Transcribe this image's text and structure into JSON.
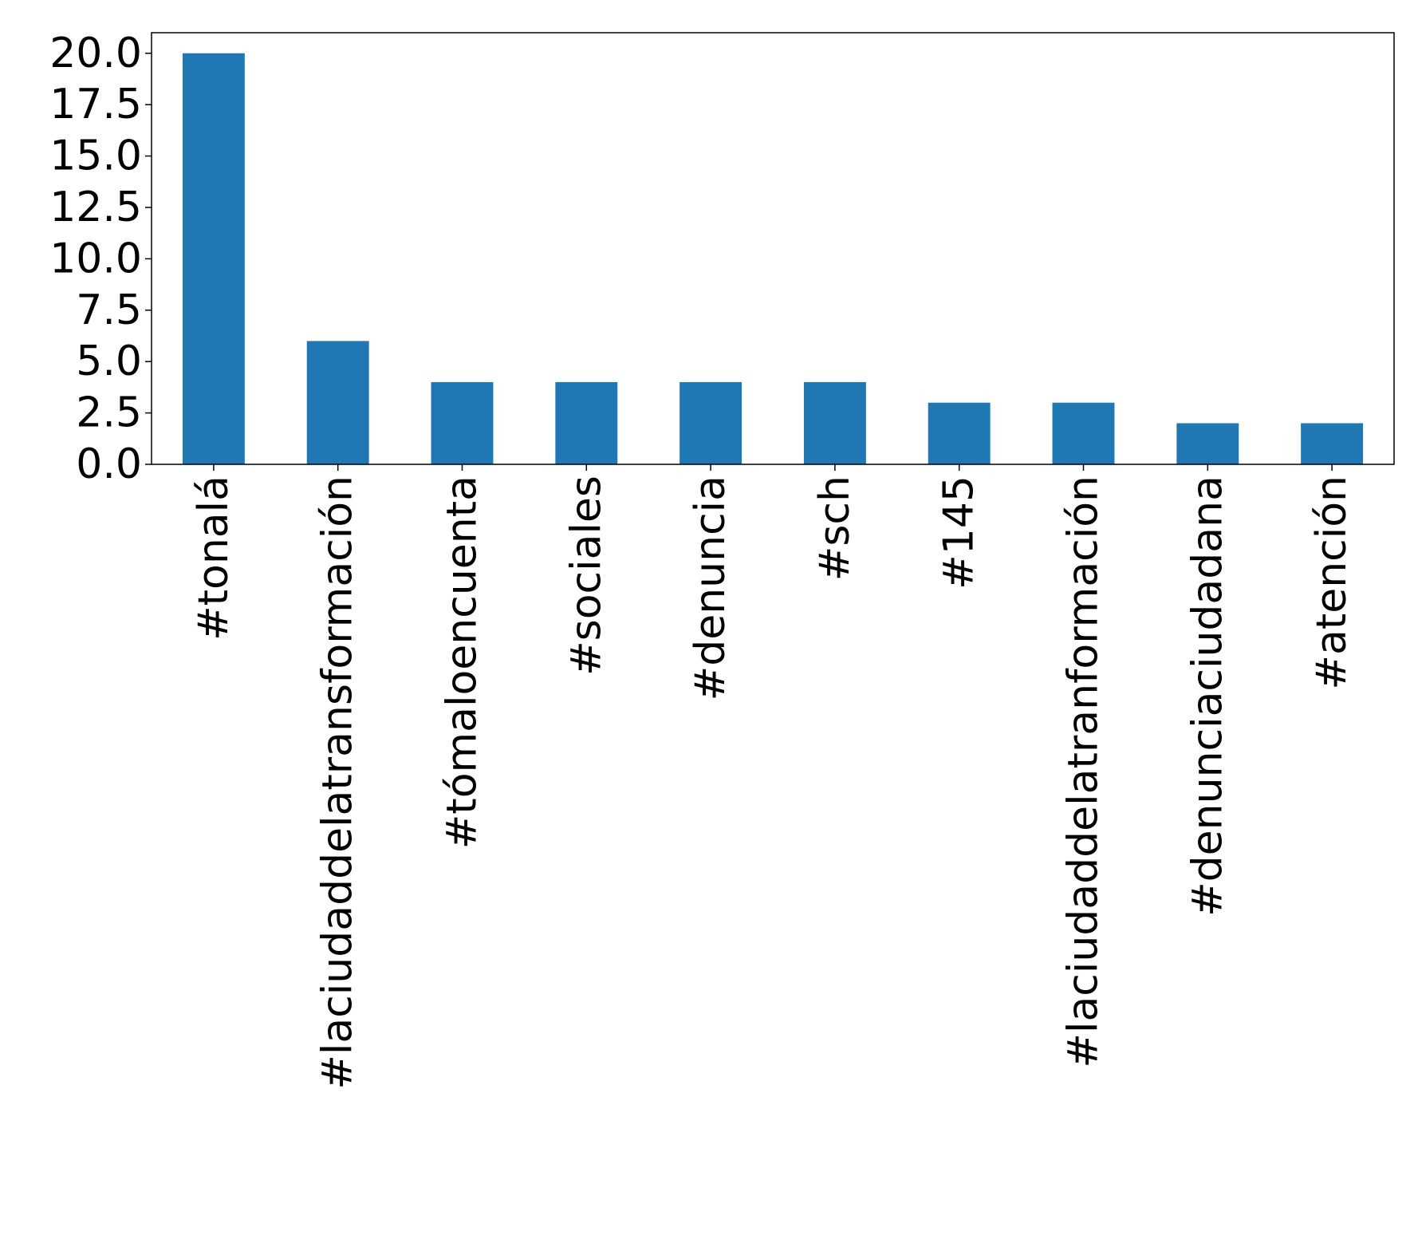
{
  "chart_data": {
    "type": "bar",
    "title": "",
    "xlabel": "",
    "ylabel": "",
    "categories": [
      "#tonalá",
      "#laciudaddelatransformación",
      "#tómaloencuenta",
      "#sociales",
      "#denuncia",
      "#sch",
      "#145",
      "#laciudaddelatranformación",
      "#denunciaciudadana",
      "#atención"
    ],
    "values": [
      20,
      6,
      4,
      4,
      4,
      4,
      3,
      3,
      2,
      2
    ],
    "ylim": [
      0,
      21
    ],
    "yticks": [
      0.0,
      2.5,
      5.0,
      7.5,
      10.0,
      12.5,
      15.0,
      17.5,
      20.0
    ],
    "ytick_labels": [
      "0.0",
      "2.5",
      "5.0",
      "7.5",
      "10.0",
      "12.5",
      "15.0",
      "17.5",
      "20.0"
    ],
    "grid": false,
    "legend": "none",
    "bar_color": "#1f77b4"
  }
}
